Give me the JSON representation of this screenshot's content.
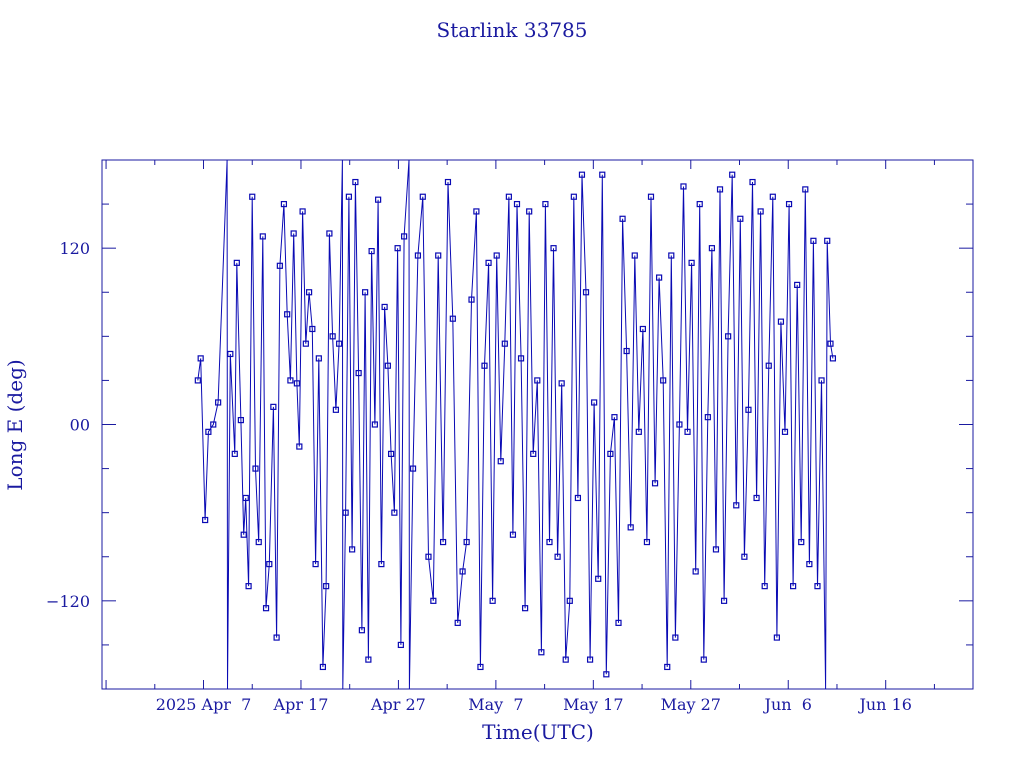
{
  "colors": {
    "ink": "#1a1aa0",
    "trace": "#0a0ab4",
    "background": "#ffffff"
  },
  "chart_data": {
    "type": "line",
    "title": "Starlink 33785",
    "xlabel": "Time(UTC)",
    "ylabel": "Long E (deg)",
    "x_tick_labels": [
      "2025 Apr  7",
      "Apr 17",
      "Apr 27",
      "May  7",
      "May 17",
      "May 27",
      "Jun  6",
      "Jun 16"
    ],
    "x_ticks": [
      "2025-04-07",
      "2025-04-17",
      "2025-04-27",
      "2025-05-07",
      "2025-05-17",
      "2025-05-27",
      "2025-06-06",
      "2025-06-16"
    ],
    "xlim": [
      "2025-03-27T14:00",
      "2025-06-24T23:00"
    ],
    "y_ticks": [
      -120,
      0,
      120
    ],
    "y_tick_labels": [
      "−120",
      "00",
      "120"
    ],
    "ylim": [
      -180,
      180
    ],
    "grid": false,
    "marker": "square",
    "series": [
      {
        "points": [
          [
            "2025-04-06T10:00",
            30
          ],
          [
            "2025-04-06T17:00",
            45
          ],
          [
            "2025-04-07T04:00",
            -65
          ],
          [
            "2025-04-07T12:00",
            -5
          ],
          [
            "2025-04-08T00:00",
            0
          ],
          [
            "2025-04-08T12:00",
            15
          ],
          [
            "2025-04-09T10:00",
            180
          ],
          [
            "2025-04-09T11:00",
            -180
          ],
          [
            "2025-04-09T18:00",
            48
          ],
          [
            "2025-04-10T05:00",
            -20
          ],
          [
            "2025-04-10T10:00",
            110
          ],
          [
            "2025-04-10T20:00",
            3
          ],
          [
            "2025-04-11T03:00",
            -75
          ],
          [
            "2025-04-11T08:00",
            -50
          ],
          [
            "2025-04-11T15:00",
            -110
          ],
          [
            "2025-04-12T00:00",
            155
          ],
          [
            "2025-04-12T08:00",
            -30
          ],
          [
            "2025-04-12T16:00",
            -80
          ],
          [
            "2025-04-13T02:00",
            128
          ],
          [
            "2025-04-13T10:00",
            -125
          ],
          [
            "2025-04-13T18:00",
            -95
          ],
          [
            "2025-04-14T04:00",
            12
          ],
          [
            "2025-04-14T12:00",
            -145
          ],
          [
            "2025-04-14T20:00",
            108
          ],
          [
            "2025-04-15T06:00",
            150
          ],
          [
            "2025-04-15T14:00",
            75
          ],
          [
            "2025-04-15T22:00",
            30
          ],
          [
            "2025-04-16T06:00",
            130
          ],
          [
            "2025-04-16T14:00",
            28
          ],
          [
            "2025-04-16T20:00",
            -15
          ],
          [
            "2025-04-17T04:00",
            145
          ],
          [
            "2025-04-17T12:00",
            55
          ],
          [
            "2025-04-17T20:00",
            90
          ],
          [
            "2025-04-18T04:00",
            65
          ],
          [
            "2025-04-18T12:00",
            -95
          ],
          [
            "2025-04-18T20:00",
            45
          ],
          [
            "2025-04-19T06:00",
            -165
          ],
          [
            "2025-04-19T14:00",
            -110
          ],
          [
            "2025-04-19T22:00",
            130
          ],
          [
            "2025-04-20T06:00",
            60
          ],
          [
            "2025-04-20T14:00",
            10
          ],
          [
            "2025-04-20T22:00",
            55
          ],
          [
            "2025-04-21T06:00",
            180
          ],
          [
            "2025-04-21T07:00",
            -180
          ],
          [
            "2025-04-21T14:00",
            -60
          ],
          [
            "2025-04-21T22:00",
            155
          ],
          [
            "2025-04-22T06:00",
            -85
          ],
          [
            "2025-04-22T14:00",
            165
          ],
          [
            "2025-04-22T22:00",
            35
          ],
          [
            "2025-04-23T06:00",
            -140
          ],
          [
            "2025-04-23T14:00",
            90
          ],
          [
            "2025-04-23T22:00",
            -160
          ],
          [
            "2025-04-24T06:00",
            118
          ],
          [
            "2025-04-24T14:00",
            0
          ],
          [
            "2025-04-24T22:00",
            153
          ],
          [
            "2025-04-25T06:00",
            -95
          ],
          [
            "2025-04-25T14:00",
            80
          ],
          [
            "2025-04-25T22:00",
            40
          ],
          [
            "2025-04-26T06:00",
            -20
          ],
          [
            "2025-04-26T14:00",
            -60
          ],
          [
            "2025-04-26T22:00",
            120
          ],
          [
            "2025-04-27T06:00",
            -150
          ],
          [
            "2025-04-27T14:00",
            128
          ],
          [
            "2025-04-28T02:00",
            180
          ],
          [
            "2025-04-28T03:00",
            -180
          ],
          [
            "2025-04-28T12:00",
            -30
          ],
          [
            "2025-04-29T00:00",
            115
          ],
          [
            "2025-04-29T12:00",
            155
          ],
          [
            "2025-04-30T02:00",
            -90
          ],
          [
            "2025-04-30T14:00",
            -120
          ],
          [
            "2025-05-01T02:00",
            115
          ],
          [
            "2025-05-01T14:00",
            -80
          ],
          [
            "2025-05-02T02:00",
            165
          ],
          [
            "2025-05-02T14:00",
            72
          ],
          [
            "2025-05-03T02:00",
            -135
          ],
          [
            "2025-05-03T14:00",
            -100
          ],
          [
            "2025-05-04T00:00",
            -80
          ],
          [
            "2025-05-04T12:00",
            85
          ],
          [
            "2025-05-05T00:00",
            145
          ],
          [
            "2025-05-05T10:00",
            -165
          ],
          [
            "2025-05-05T20:00",
            40
          ],
          [
            "2025-05-06T06:00",
            110
          ],
          [
            "2025-05-06T16:00",
            -120
          ],
          [
            "2025-05-07T02:00",
            115
          ],
          [
            "2025-05-07T12:00",
            -25
          ],
          [
            "2025-05-07T22:00",
            55
          ],
          [
            "2025-05-08T08:00",
            155
          ],
          [
            "2025-05-08T18:00",
            -75
          ],
          [
            "2025-05-09T04:00",
            150
          ],
          [
            "2025-05-09T14:00",
            45
          ],
          [
            "2025-05-10T00:00",
            -125
          ],
          [
            "2025-05-10T10:00",
            145
          ],
          [
            "2025-05-10T20:00",
            -20
          ],
          [
            "2025-05-11T06:00",
            30
          ],
          [
            "2025-05-11T16:00",
            -155
          ],
          [
            "2025-05-12T02:00",
            150
          ],
          [
            "2025-05-12T12:00",
            -80
          ],
          [
            "2025-05-12T22:00",
            120
          ],
          [
            "2025-05-13T08:00",
            -90
          ],
          [
            "2025-05-13T18:00",
            28
          ],
          [
            "2025-05-14T04:00",
            -160
          ],
          [
            "2025-05-14T14:00",
            -120
          ],
          [
            "2025-05-15T00:00",
            155
          ],
          [
            "2025-05-15T10:00",
            -50
          ],
          [
            "2025-05-15T20:00",
            170
          ],
          [
            "2025-05-16T06:00",
            90
          ],
          [
            "2025-05-16T16:00",
            -160
          ],
          [
            "2025-05-17T02:00",
            15
          ],
          [
            "2025-05-17T12:00",
            -105
          ],
          [
            "2025-05-17T22:00",
            170
          ],
          [
            "2025-05-18T08:00",
            -170
          ],
          [
            "2025-05-18T18:00",
            -20
          ],
          [
            "2025-05-19T04:00",
            5
          ],
          [
            "2025-05-19T14:00",
            -135
          ],
          [
            "2025-05-20T00:00",
            140
          ],
          [
            "2025-05-20T10:00",
            50
          ],
          [
            "2025-05-20T20:00",
            -70
          ],
          [
            "2025-05-21T06:00",
            115
          ],
          [
            "2025-05-21T16:00",
            -5
          ],
          [
            "2025-05-22T02:00",
            65
          ],
          [
            "2025-05-22T12:00",
            -80
          ],
          [
            "2025-05-22T22:00",
            155
          ],
          [
            "2025-05-23T08:00",
            -40
          ],
          [
            "2025-05-23T18:00",
            100
          ],
          [
            "2025-05-24T04:00",
            30
          ],
          [
            "2025-05-24T14:00",
            -165
          ],
          [
            "2025-05-25T00:00",
            115
          ],
          [
            "2025-05-25T10:00",
            -145
          ],
          [
            "2025-05-25T20:00",
            0
          ],
          [
            "2025-05-26T06:00",
            162
          ],
          [
            "2025-05-26T16:00",
            -5
          ],
          [
            "2025-05-27T02:00",
            110
          ],
          [
            "2025-05-27T12:00",
            -100
          ],
          [
            "2025-05-27T22:00",
            150
          ],
          [
            "2025-05-28T08:00",
            -160
          ],
          [
            "2025-05-28T18:00",
            5
          ],
          [
            "2025-05-29T04:00",
            120
          ],
          [
            "2025-05-29T14:00",
            -85
          ],
          [
            "2025-05-30T00:00",
            160
          ],
          [
            "2025-05-30T10:00",
            -120
          ],
          [
            "2025-05-30T20:00",
            60
          ],
          [
            "2025-05-31T06:00",
            170
          ],
          [
            "2025-05-31T16:00",
            -55
          ],
          [
            "2025-06-01T02:00",
            140
          ],
          [
            "2025-06-01T12:00",
            -90
          ],
          [
            "2025-06-01T22:00",
            10
          ],
          [
            "2025-06-02T08:00",
            165
          ],
          [
            "2025-06-02T18:00",
            -50
          ],
          [
            "2025-06-03T04:00",
            145
          ],
          [
            "2025-06-03T14:00",
            -110
          ],
          [
            "2025-06-04T00:00",
            40
          ],
          [
            "2025-06-04T10:00",
            155
          ],
          [
            "2025-06-04T20:00",
            -145
          ],
          [
            "2025-06-05T06:00",
            70
          ],
          [
            "2025-06-05T16:00",
            -5
          ],
          [
            "2025-06-06T02:00",
            150
          ],
          [
            "2025-06-06T12:00",
            -110
          ],
          [
            "2025-06-06T22:00",
            95
          ],
          [
            "2025-06-07T08:00",
            -80
          ],
          [
            "2025-06-07T18:00",
            160
          ],
          [
            "2025-06-08T04:00",
            -95
          ],
          [
            "2025-06-08T14:00",
            125
          ],
          [
            "2025-06-09T00:00",
            -110
          ],
          [
            "2025-06-09T10:00",
            30
          ],
          [
            "2025-06-09T20:00",
            -180
          ],
          [
            "2025-06-10T00:00",
            125
          ],
          [
            "2025-06-10T08:00",
            55
          ],
          [
            "2025-06-10T14:00",
            45
          ]
        ]
      }
    ]
  }
}
